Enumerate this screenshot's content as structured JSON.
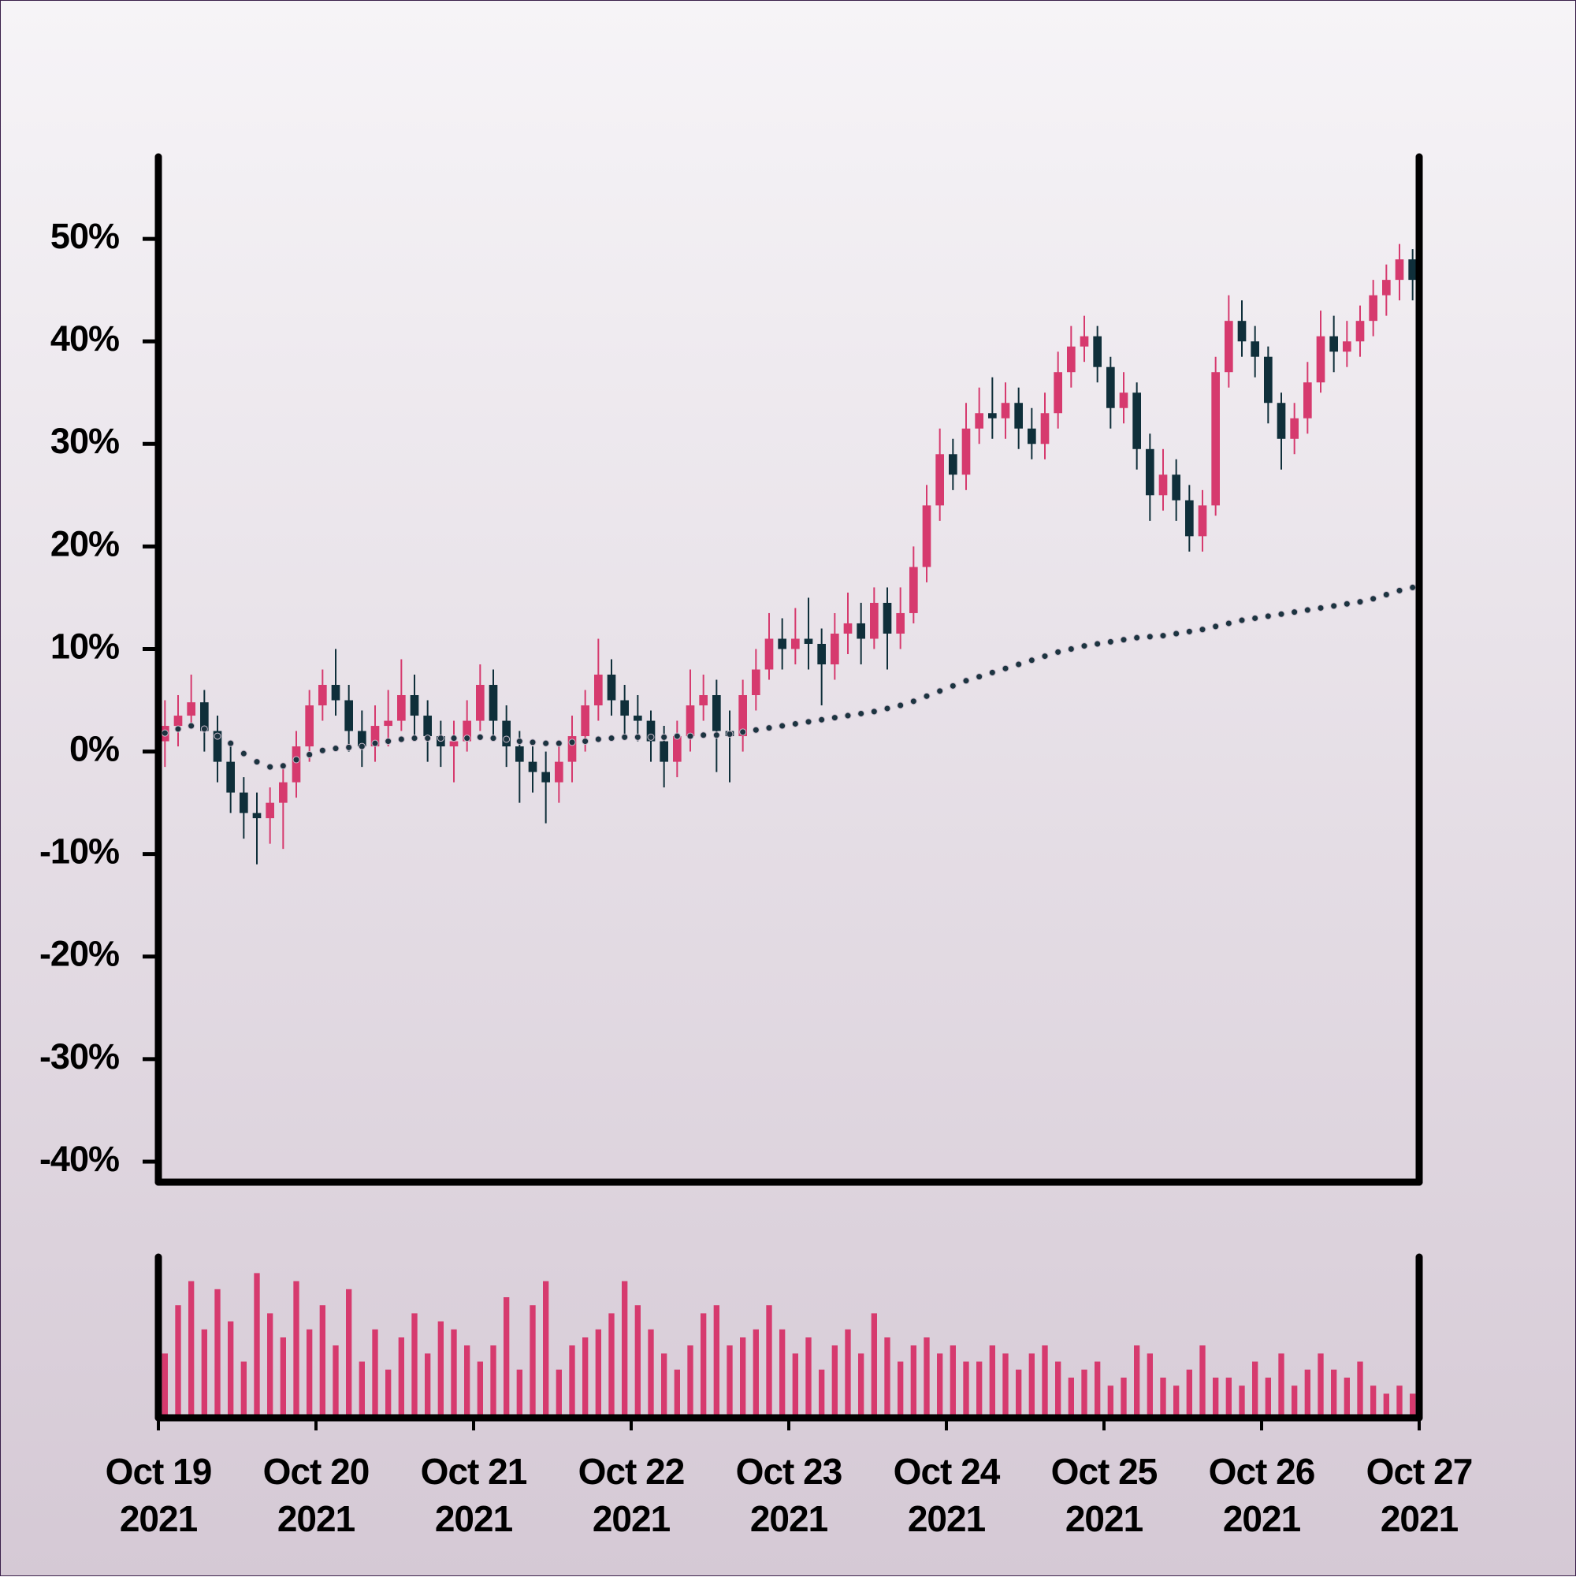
{
  "chart_data": {
    "type": "candlestick",
    "up_color": "#d63a6e",
    "down_color": "#0f2f3a",
    "ylim": [
      -42,
      58
    ],
    "yticks": [
      {
        "value": -40,
        "label": "-40%"
      },
      {
        "value": -30,
        "label": "-30%"
      },
      {
        "value": -20,
        "label": "-20%"
      },
      {
        "value": -10,
        "label": "-10%"
      },
      {
        "value": 0,
        "label": "0%"
      },
      {
        "value": 10,
        "label": "10%"
      },
      {
        "value": 20,
        "label": "20%"
      },
      {
        "value": 30,
        "label": "30%"
      },
      {
        "value": 40,
        "label": "40%"
      },
      {
        "value": 50,
        "label": "50%"
      }
    ],
    "xlim": [
      0,
      96
    ],
    "xticks": [
      {
        "value": 0,
        "label": "Oct 19\n2021"
      },
      {
        "value": 12,
        "label": "Oct 20\n2021"
      },
      {
        "value": 24,
        "label": "Oct 21\n2021"
      },
      {
        "value": 36,
        "label": "Oct 22\n2021"
      },
      {
        "value": 48,
        "label": "Oct 23\n2021"
      },
      {
        "value": 60,
        "label": "Oct 24\n2021"
      },
      {
        "value": 72,
        "label": "Oct 25\n2021"
      },
      {
        "value": 84,
        "label": "Oct 26\n2021"
      },
      {
        "value": 96,
        "label": "Oct 27\n2021"
      }
    ],
    "open": [
      1.0,
      2.5,
      3.5,
      4.8,
      2.0,
      -1.0,
      -4.0,
      -6.0,
      -6.5,
      -5.0,
      -3.0,
      0.5,
      4.5,
      6.5,
      5.0,
      2.0,
      0.5,
      2.5,
      3.0,
      5.5,
      3.5,
      1.5,
      0.5,
      1.0,
      3.0,
      6.5,
      3.0,
      0.5,
      -1.0,
      -2.0,
      -3.0,
      -1.0,
      1.5,
      4.5,
      7.5,
      5.0,
      3.5,
      3.0,
      1.0,
      -1.0,
      1.5,
      4.5,
      5.5,
      2.0,
      1.5,
      5.5,
      8.0,
      11.0,
      10.0,
      11.0,
      10.5,
      8.5,
      11.5,
      12.5,
      11.0,
      14.5,
      11.5,
      13.5,
      18.0,
      24.0,
      29.0,
      27.0,
      31.5,
      33.0,
      32.5,
      34.0,
      31.5,
      30.0,
      33.0,
      37.0,
      39.5,
      40.5,
      37.5,
      33.5,
      35.0,
      29.5,
      25.0,
      27.0,
      24.5,
      21.0,
      24.0,
      37.0,
      42.0,
      40.0,
      38.5,
      34.0,
      30.5,
      32.5,
      36.0,
      40.5,
      39.0,
      40.0,
      42.0,
      44.5,
      46.0,
      48.0
    ],
    "high": [
      5.0,
      5.5,
      7.5,
      6.0,
      3.5,
      0.5,
      -2.5,
      -4.0,
      -3.5,
      -1.5,
      2.0,
      6.0,
      8.0,
      10.0,
      6.5,
      4.0,
      4.5,
      6.0,
      9.0,
      7.5,
      5.0,
      3.0,
      3.0,
      5.0,
      8.5,
      8.0,
      4.5,
      2.0,
      0.5,
      0.0,
      1.0,
      3.5,
      6.0,
      11.0,
      9.0,
      6.5,
      5.5,
      4.0,
      2.5,
      3.0,
      8.0,
      7.5,
      7.0,
      4.0,
      7.0,
      10.0,
      13.5,
      13.0,
      14.0,
      15.0,
      12.0,
      13.5,
      15.5,
      14.5,
      16.0,
      16.0,
      16.0,
      20.0,
      26.0,
      31.5,
      30.5,
      34.0,
      35.5,
      36.5,
      36.0,
      35.5,
      33.5,
      35.0,
      39.0,
      41.5,
      42.5,
      41.5,
      38.5,
      37.0,
      36.0,
      31.0,
      29.5,
      28.5,
      26.0,
      25.5,
      38.5,
      44.5,
      44.0,
      41.5,
      39.5,
      35.0,
      34.0,
      38.0,
      43.0,
      42.5,
      42.0,
      43.5,
      46.0,
      47.5,
      49.5,
      49.0
    ],
    "low": [
      -1.5,
      0.5,
      2.5,
      0.0,
      -3.0,
      -6.0,
      -8.5,
      -11.0,
      -9.0,
      -9.5,
      -4.5,
      -1.0,
      3.0,
      3.5,
      0.0,
      -1.5,
      -1.0,
      0.5,
      2.0,
      1.5,
      -1.0,
      -1.5,
      -3.0,
      0.0,
      2.0,
      1.5,
      -1.5,
      -5.0,
      -4.0,
      -7.0,
      -5.0,
      -3.0,
      0.0,
      3.0,
      3.5,
      1.5,
      1.0,
      -1.0,
      -3.5,
      -2.5,
      0.0,
      3.0,
      -2.0,
      -3.0,
      0.0,
      4.0,
      7.0,
      8.0,
      8.5,
      8.0,
      4.5,
      7.0,
      9.5,
      8.5,
      10.0,
      8.0,
      10.0,
      12.5,
      16.5,
      22.5,
      25.5,
      25.5,
      30.0,
      30.5,
      30.5,
      29.5,
      28.5,
      28.5,
      31.5,
      35.5,
      38.0,
      36.0,
      31.5,
      32.0,
      27.5,
      22.5,
      23.5,
      22.5,
      19.5,
      19.5,
      23.0,
      35.5,
      38.5,
      36.5,
      32.0,
      27.5,
      29.0,
      31.0,
      35.0,
      37.0,
      37.5,
      38.5,
      40.5,
      42.5,
      44.0,
      44.0
    ],
    "close": [
      2.5,
      3.5,
      4.8,
      2.0,
      -1.0,
      -4.0,
      -6.0,
      -6.5,
      -5.0,
      -3.0,
      0.5,
      4.5,
      6.5,
      5.0,
      2.0,
      0.5,
      2.5,
      3.0,
      5.5,
      3.5,
      1.5,
      0.5,
      1.0,
      3.0,
      6.5,
      3.0,
      0.5,
      -1.0,
      -2.0,
      -3.0,
      -1.0,
      1.5,
      4.5,
      7.5,
      5.0,
      3.5,
      3.0,
      1.0,
      -1.0,
      1.5,
      4.5,
      5.5,
      2.0,
      1.5,
      5.5,
      8.0,
      11.0,
      10.0,
      11.0,
      10.5,
      8.5,
      11.5,
      12.5,
      11.0,
      14.5,
      11.5,
      13.5,
      18.0,
      24.0,
      29.0,
      27.0,
      31.5,
      33.0,
      32.5,
      34.0,
      31.5,
      30.0,
      33.0,
      37.0,
      39.5,
      40.5,
      37.5,
      33.5,
      35.0,
      29.5,
      25.0,
      27.0,
      24.5,
      21.0,
      24.0,
      37.0,
      42.0,
      40.0,
      38.5,
      34.0,
      30.5,
      32.5,
      36.0,
      40.5,
      39.0,
      40.0,
      42.0,
      44.5,
      46.0,
      48.0,
      46.0
    ],
    "moving_average": {
      "color": "#1c3440",
      "values": [
        1.8,
        2.2,
        2.5,
        2.2,
        1.5,
        0.8,
        -0.2,
        -1.0,
        -1.5,
        -1.4,
        -0.8,
        -0.3,
        0.1,
        0.3,
        0.4,
        0.5,
        0.8,
        1.0,
        1.2,
        1.3,
        1.3,
        1.3,
        1.3,
        1.3,
        1.4,
        1.3,
        1.2,
        1.0,
        0.9,
        0.8,
        0.8,
        0.9,
        1.0,
        1.2,
        1.3,
        1.4,
        1.4,
        1.4,
        1.4,
        1.5,
        1.5,
        1.6,
        1.6,
        1.7,
        1.9,
        2.1,
        2.3,
        2.5,
        2.7,
        2.9,
        3.1,
        3.3,
        3.5,
        3.7,
        3.9,
        4.2,
        4.5,
        4.9,
        5.4,
        5.9,
        6.4,
        6.9,
        7.3,
        7.7,
        8.1,
        8.5,
        8.9,
        9.3,
        9.7,
        10.0,
        10.3,
        10.5,
        10.7,
        10.9,
        11.1,
        11.2,
        11.3,
        11.5,
        11.7,
        11.9,
        12.2,
        12.5,
        12.8,
        13.0,
        13.2,
        13.4,
        13.6,
        13.8,
        14.0,
        14.2,
        14.4,
        14.6,
        14.9,
        15.3,
        15.7,
        16.0
      ]
    },
    "volume": {
      "color": "#d63a6e",
      "ylim": [
        0,
        100
      ],
      "values": [
        40,
        70,
        85,
        55,
        80,
        60,
        35,
        90,
        65,
        50,
        85,
        55,
        70,
        45,
        80,
        35,
        55,
        30,
        50,
        65,
        40,
        60,
        55,
        45,
        35,
        45,
        75,
        30,
        70,
        85,
        30,
        45,
        50,
        55,
        65,
        85,
        70,
        55,
        40,
        30,
        45,
        65,
        70,
        45,
        50,
        55,
        70,
        55,
        40,
        50,
        30,
        45,
        55,
        40,
        65,
        50,
        35,
        45,
        50,
        40,
        45,
        35,
        35,
        45,
        40,
        30,
        40,
        45,
        35,
        25,
        30,
        35,
        20,
        25,
        45,
        40,
        25,
        20,
        30,
        45,
        25,
        25,
        20,
        35,
        25,
        40,
        20,
        30,
        40,
        30,
        25,
        35,
        20,
        15,
        20,
        15
      ]
    }
  }
}
